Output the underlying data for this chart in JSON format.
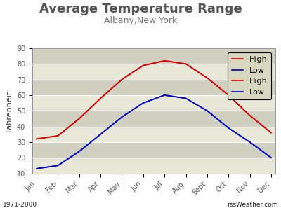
{
  "title": "Average Temperature Range",
  "subtitle": "Albany,New York",
  "ylabel": "Fahrenheit",
  "months": [
    "Jan",
    "Feb",
    "Mar",
    "Apr",
    "May",
    "Jun",
    "Jul",
    "Aug",
    "Sept",
    "Oct",
    "Nov",
    "Dec"
  ],
  "high": [
    32,
    34,
    45,
    58,
    70,
    79,
    82,
    80,
    71,
    60,
    47,
    36
  ],
  "low": [
    13,
    15,
    24,
    35,
    46,
    55,
    60,
    58,
    50,
    39,
    30,
    20
  ],
  "high_color": "#dd0000",
  "low_color": "#0000cc",
  "ylim": [
    10,
    90
  ],
  "yticks": [
    10,
    20,
    30,
    40,
    50,
    60,
    70,
    80,
    90
  ],
  "plot_bg": "#dcdccc",
  "legend_bg": "#d8d8c0",
  "footer_left": "1971-2000",
  "footer_right": "rssWeather.com",
  "title_fontsize": 13,
  "subtitle_fontsize": 9,
  "axis_label_fontsize": 8,
  "tick_fontsize": 7,
  "legend_fontsize": 8,
  "footer_fontsize": 6.5,
  "footer_bg": "#aaaaaa",
  "outer_bg": "#ffffff"
}
